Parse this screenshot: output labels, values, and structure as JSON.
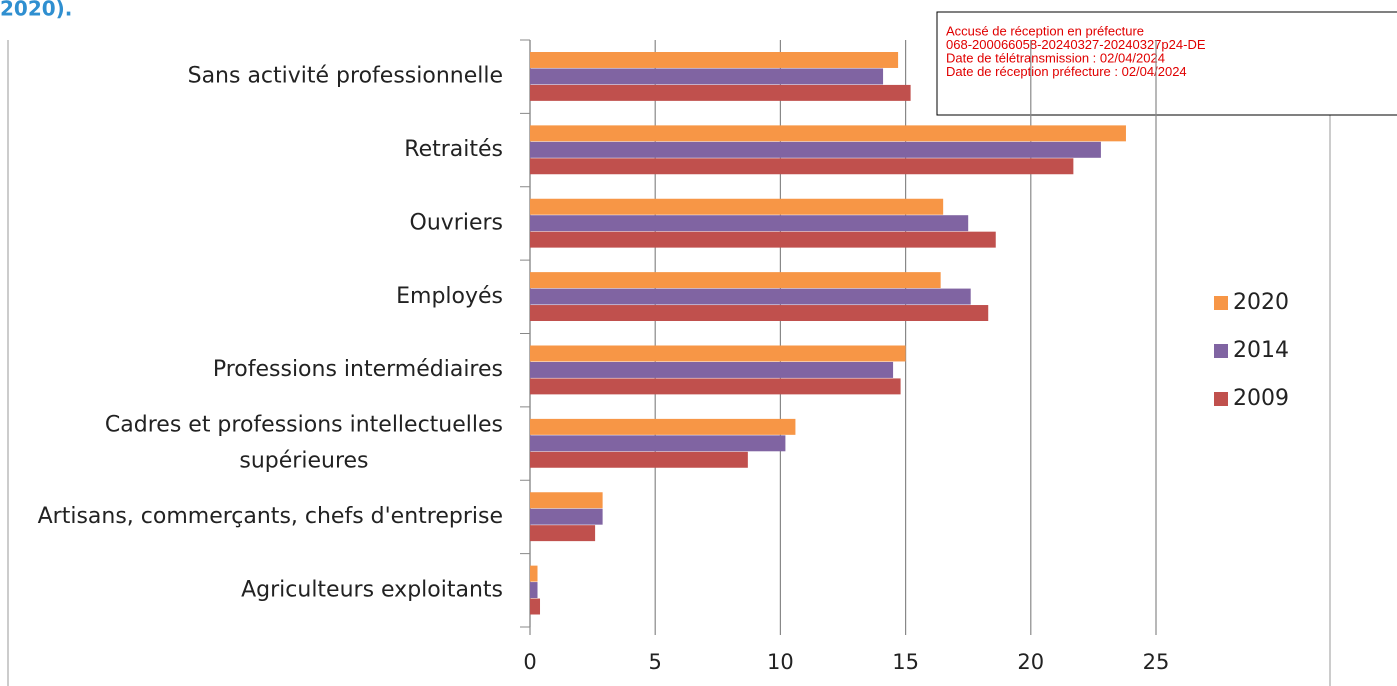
{
  "header_fragment": "2020).",
  "stamp": [
    "Accusé de réception en préfecture",
    "068-200066058-20240327-20240327p24-DE",
    "Date de télétransmission : 02/04/2024",
    "Date de réception préfecture : 02/04/2024"
  ],
  "chart_data": {
    "type": "hbar",
    "categories": [
      "Sans activité professionnelle",
      "Retraités",
      "Ouvriers",
      "Employés",
      "Professions intermédiaires",
      "Cadres et professions intellectuelles supérieures",
      "Artisans, commerçants, chefs d'entreprise",
      "Agriculteurs exploitants"
    ],
    "series": [
      {
        "name": "2020",
        "color": "#f79646",
        "values": [
          14.7,
          23.8,
          16.5,
          16.4,
          15.0,
          10.6,
          2.9,
          0.3
        ]
      },
      {
        "name": "2014",
        "color": "#8064a2",
        "values": [
          14.1,
          22.8,
          17.5,
          17.6,
          14.5,
          10.2,
          2.9,
          0.3
        ]
      },
      {
        "name": "2009",
        "color": "#c0504d",
        "values": [
          15.2,
          21.7,
          18.6,
          18.3,
          14.8,
          8.7,
          2.6,
          0.4
        ]
      }
    ],
    "xlim": [
      0,
      25
    ],
    "xticks": [
      0,
      5,
      10,
      15,
      20,
      25
    ],
    "grid": true,
    "legend": "right"
  }
}
